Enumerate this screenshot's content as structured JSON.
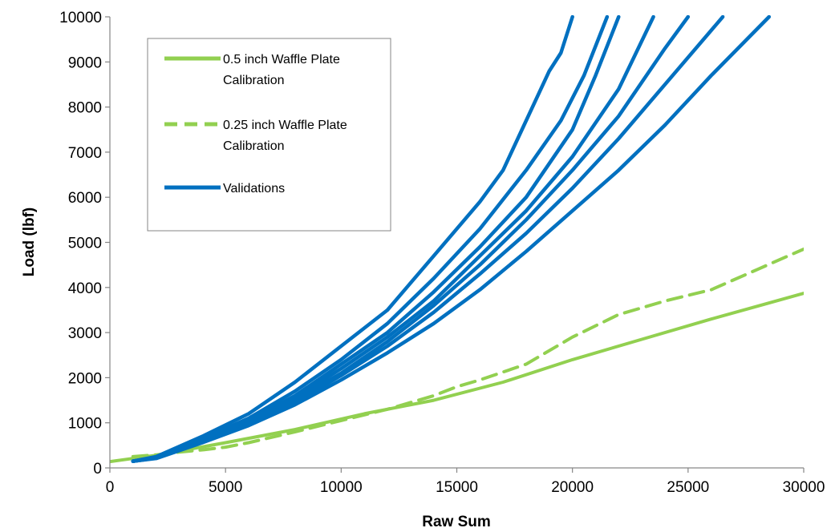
{
  "chart_data": {
    "type": "line",
    "xlabel": "Raw Sum",
    "ylabel": "Load (lbf)",
    "xlim": [
      0,
      30000
    ],
    "ylim": [
      0,
      10000
    ],
    "xticks": [
      "0",
      "5000",
      "10000",
      "15000",
      "20000",
      "25000",
      "30000"
    ],
    "yticks": [
      "0",
      "1000",
      "2000",
      "3000",
      "4000",
      "5000",
      "6000",
      "7000",
      "8000",
      "9000",
      "10000"
    ],
    "grid": false,
    "legend_position": "top-left",
    "legend": [
      {
        "lines": [
          "0.5 inch Waffle Plate",
          "Calibration"
        ],
        "style": "solid",
        "color": "#92D050"
      },
      {
        "lines": [
          "0.25 inch Waffle Plate",
          "Calibration"
        ],
        "style": "dashed",
        "color": "#92D050"
      },
      {
        "lines": [
          "Validations"
        ],
        "style": "solid",
        "color": "#0070C0"
      }
    ],
    "series": [
      {
        "name": "0.5 inch Waffle Plate Calibration",
        "color": "#92D050",
        "style": "solid",
        "x": [
          0,
          2000,
          5000,
          8000,
          11000,
          14000,
          17000,
          20000,
          23000,
          26000,
          30000
        ],
        "y": [
          140,
          280,
          560,
          850,
          1200,
          1500,
          1900,
          2400,
          2850,
          3300,
          3870
        ]
      },
      {
        "name": "0.25 inch Waffle Plate Calibration",
        "color": "#92D050",
        "style": "dashed",
        "x": [
          1000,
          2000,
          3000,
          4000,
          5000,
          6000,
          8000,
          10000,
          12000,
          14000,
          15000,
          16000,
          18000,
          20000,
          22000,
          24000,
          26000,
          28000,
          30000
        ],
        "y": [
          250,
          290,
          350,
          400,
          460,
          560,
          800,
          1050,
          1300,
          1600,
          1800,
          1950,
          2300,
          2900,
          3400,
          3700,
          3950,
          4400,
          4850
        ]
      },
      {
        "name": "Validations",
        "color": "#0070C0",
        "style": "solid",
        "x": [
          1000,
          2000,
          4000,
          6000,
          8000,
          10000,
          12000,
          14000,
          16000,
          17000,
          18000,
          19000,
          19500,
          20000
        ],
        "y": [
          150,
          250,
          700,
          1200,
          1900,
          2700,
          3500,
          4700,
          5900,
          6600,
          7700,
          8800,
          9200,
          10000
        ]
      },
      {
        "name": "Validations",
        "color": "#0070C0",
        "style": "solid",
        "x": [
          1000,
          2000,
          4000,
          6000,
          8000,
          10000,
          12000,
          14000,
          16000,
          18000,
          19500,
          20500,
          21500
        ],
        "y": [
          150,
          240,
          650,
          1100,
          1700,
          2400,
          3200,
          4200,
          5300,
          6600,
          7700,
          8700,
          10000
        ]
      },
      {
        "name": "Validations",
        "color": "#0070C0",
        "style": "solid",
        "x": [
          1000,
          2000,
          4000,
          6000,
          8000,
          10000,
          12000,
          14000,
          16000,
          18000,
          20000,
          21000,
          22000
        ],
        "y": [
          150,
          230,
          620,
          1050,
          1600,
          2300,
          3000,
          3900,
          4900,
          6000,
          7500,
          8700,
          10000
        ]
      },
      {
        "name": "Validations",
        "color": "#0070C0",
        "style": "solid",
        "x": [
          1000,
          2000,
          4000,
          6000,
          8000,
          10000,
          12000,
          14000,
          16000,
          18000,
          20000,
          22000,
          23500
        ],
        "y": [
          150,
          230,
          600,
          1000,
          1550,
          2200,
          2900,
          3700,
          4700,
          5700,
          6900,
          8400,
          10000
        ]
      },
      {
        "name": "Validations",
        "color": "#0070C0",
        "style": "solid",
        "x": [
          1000,
          2000,
          4000,
          6000,
          8000,
          10000,
          12000,
          14000,
          16000,
          18000,
          20000,
          22000,
          24000,
          25000
        ],
        "y": [
          150,
          220,
          580,
          980,
          1500,
          2100,
          2800,
          3600,
          4500,
          5500,
          6600,
          7800,
          9300,
          10000
        ]
      },
      {
        "name": "Validations",
        "color": "#0070C0",
        "style": "solid",
        "x": [
          1000,
          2000,
          4000,
          6000,
          8000,
          10000,
          12000,
          14000,
          16000,
          18000,
          20000,
          22000,
          24000,
          26500
        ],
        "y": [
          150,
          220,
          570,
          960,
          1450,
          2050,
          2700,
          3450,
          4300,
          5200,
          6200,
          7300,
          8500,
          10000
        ]
      },
      {
        "name": "Validations",
        "color": "#0070C0",
        "style": "solid",
        "x": [
          1000,
          2000,
          4000,
          6000,
          8000,
          10000,
          12000,
          14000,
          16000,
          18000,
          20000,
          22000,
          24000,
          26000,
          28500
        ],
        "y": [
          150,
          210,
          560,
          940,
          1400,
          1950,
          2550,
          3200,
          3950,
          4800,
          5700,
          6600,
          7600,
          8700,
          10000
        ]
      }
    ]
  }
}
